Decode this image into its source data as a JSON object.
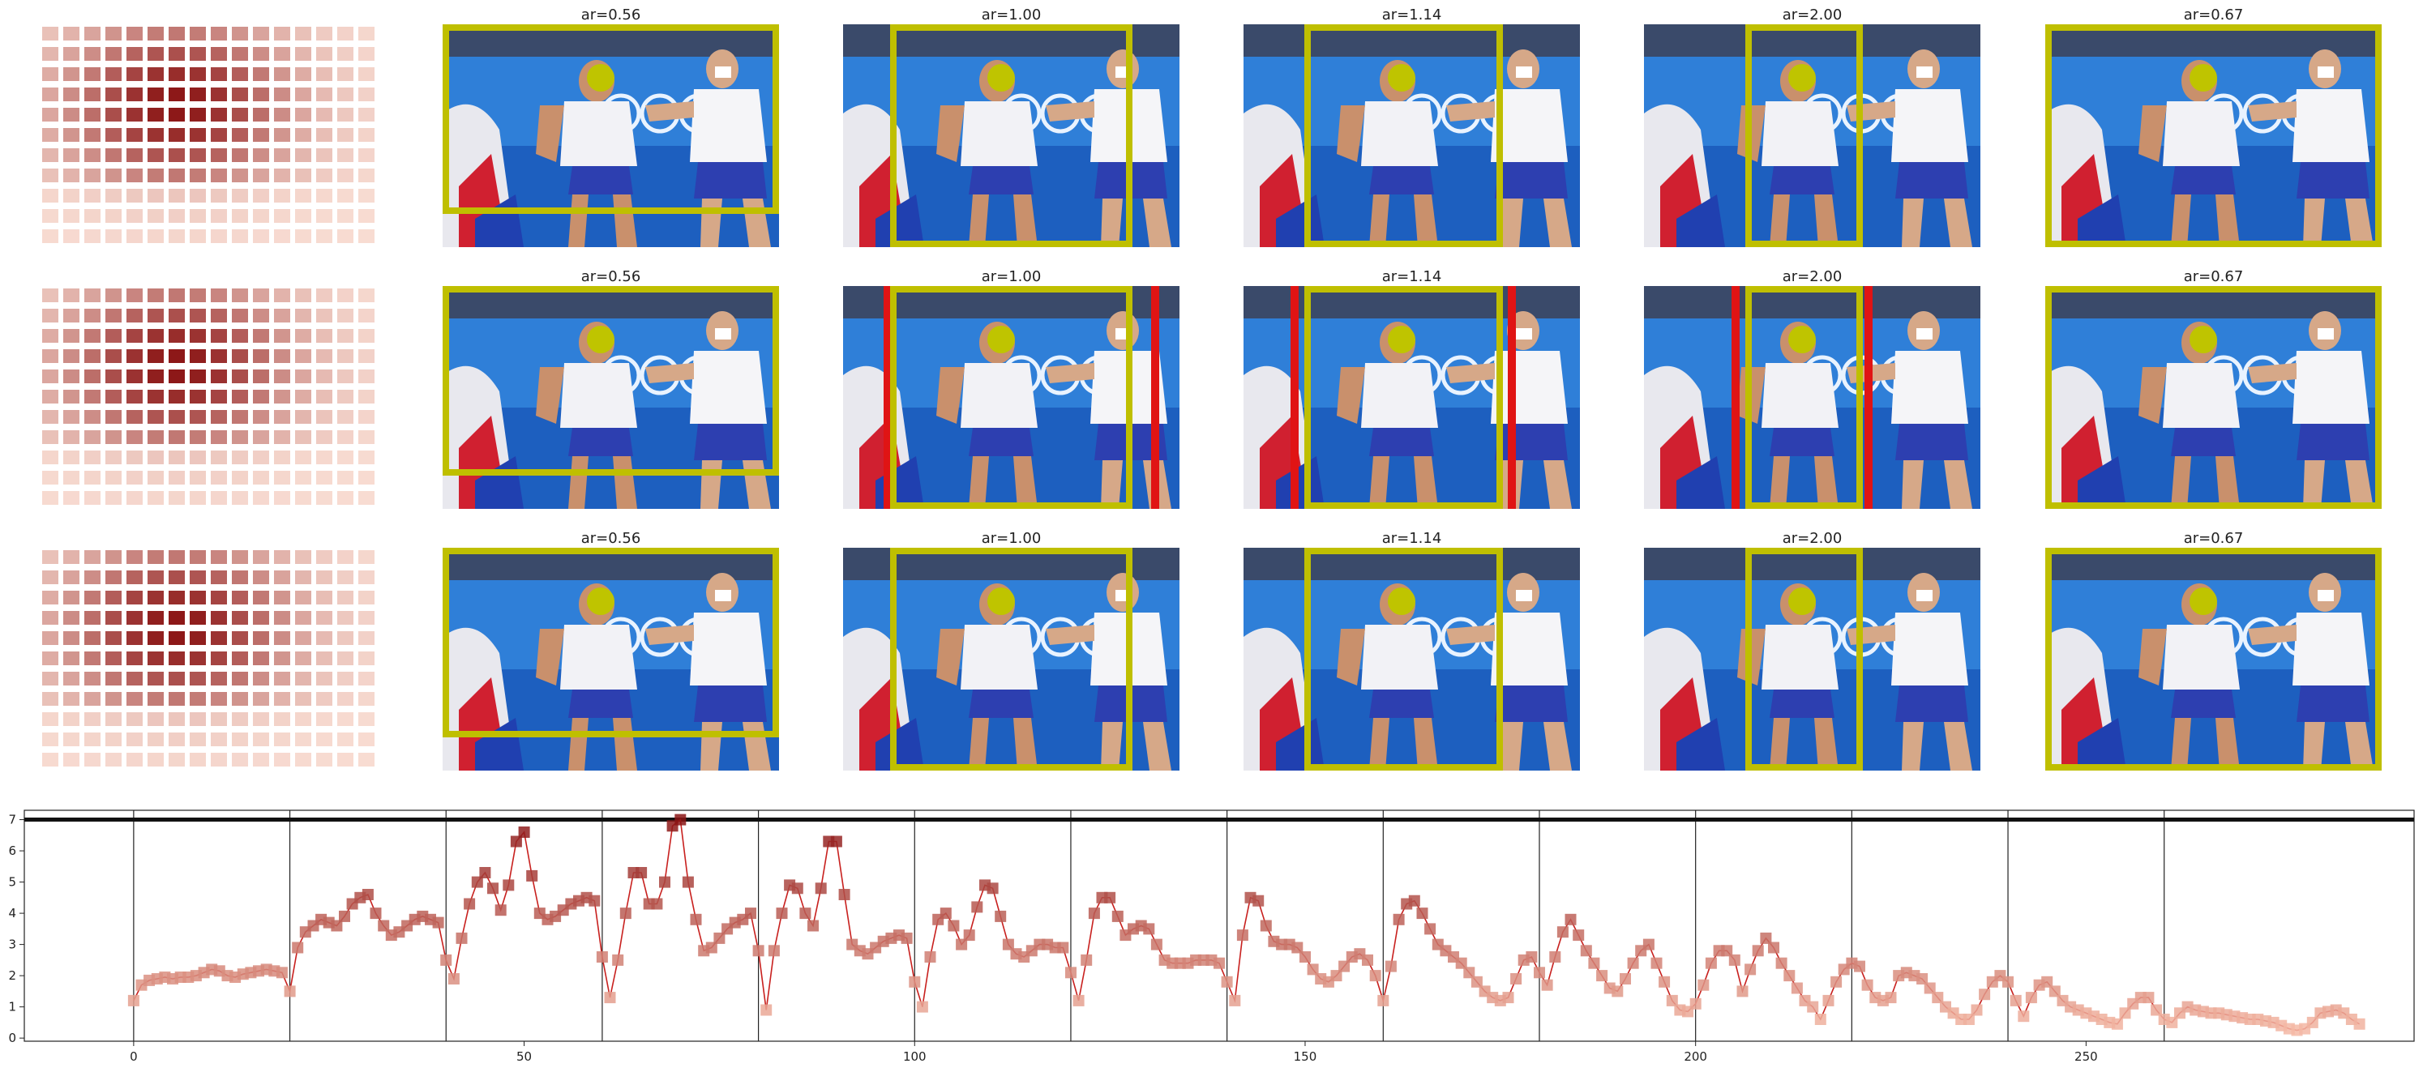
{
  "rows": [
    {
      "heatmap_icon": "saliency-heatmap",
      "crops": [
        {
          "title": "ar=0.56"
        },
        {
          "title": "ar=1.00"
        },
        {
          "title": "ar=1.14"
        },
        {
          "title": "ar=2.00"
        },
        {
          "title": "ar=0.67"
        }
      ]
    },
    {
      "heatmap_icon": "saliency-heatmap",
      "crops": [
        {
          "title": "ar=0.56"
        },
        {
          "title": "ar=1.00"
        },
        {
          "title": "ar=1.14"
        },
        {
          "title": "ar=2.00"
        },
        {
          "title": "ar=0.67"
        }
      ]
    },
    {
      "heatmap_icon": "saliency-heatmap",
      "crops": [
        {
          "title": "ar=0.56"
        },
        {
          "title": "ar=1.00"
        },
        {
          "title": "ar=1.14"
        },
        {
          "title": "ar=2.00"
        },
        {
          "title": "ar=0.67"
        }
      ]
    }
  ],
  "colors": {
    "crop_box": "#bfbf00",
    "alt_crop_box": "#e01414",
    "face_dot": "#bfc400",
    "series_line": "#c8201e",
    "heat_low": "#f8dcd2",
    "heat_high": "#8b1515"
  },
  "chart_data": {
    "type": "line",
    "marker": "square",
    "xlim": [
      -14,
      292
    ],
    "ylim": [
      -0.1,
      7.3
    ],
    "xticks": [
      0,
      50,
      100,
      150,
      200,
      250
    ],
    "yticks": [
      0,
      1,
      2,
      3,
      4,
      5,
      6,
      7
    ],
    "grid": "vertical lines every 20 frames",
    "vlines": [
      0,
      20,
      40,
      60,
      80,
      100,
      120,
      140,
      160,
      180,
      200,
      220,
      240,
      260
    ],
    "hline": 7,
    "x_start": 0,
    "values": [
      1.2,
      1.7,
      1.85,
      1.9,
      1.95,
      1.9,
      1.95,
      1.95,
      2.0,
      2.1,
      2.2,
      2.15,
      2.0,
      1.95,
      2.05,
      2.1,
      2.15,
      2.2,
      2.15,
      2.1,
      1.5,
      2.9,
      3.4,
      3.6,
      3.8,
      3.7,
      3.6,
      3.9,
      4.3,
      4.5,
      4.6,
      4.0,
      3.6,
      3.3,
      3.4,
      3.6,
      3.8,
      3.9,
      3.8,
      3.7,
      2.5,
      1.9,
      3.2,
      4.3,
      5.0,
      5.3,
      4.8,
      4.1,
      4.9,
      6.3,
      6.6,
      5.2,
      4.0,
      3.8,
      3.9,
      4.1,
      4.3,
      4.4,
      4.5,
      4.4,
      2.6,
      1.3,
      2.5,
      4.0,
      5.3,
      5.3,
      4.3,
      4.3,
      5.0,
      6.8,
      7.0,
      5.0,
      3.8,
      2.8,
      2.9,
      3.2,
      3.5,
      3.7,
      3.8,
      4.0,
      2.8,
      0.9,
      2.8,
      4.0,
      4.9,
      4.8,
      4.0,
      3.6,
      4.8,
      6.3,
      6.3,
      4.6,
      3.0,
      2.8,
      2.7,
      2.9,
      3.1,
      3.2,
      3.3,
      3.2,
      1.8,
      1.0,
      2.6,
      3.8,
      4.0,
      3.6,
      3.0,
      3.3,
      4.2,
      4.9,
      4.8,
      3.9,
      3.0,
      2.7,
      2.6,
      2.8,
      3.0,
      3.0,
      2.9,
      2.9,
      2.1,
      1.2,
      2.5,
      4.0,
      4.5,
      4.5,
      3.9,
      3.3,
      3.5,
      3.6,
      3.5,
      3.0,
      2.5,
      2.4,
      2.4,
      2.4,
      2.5,
      2.5,
      2.5,
      2.4,
      1.8,
      1.2,
      3.3,
      4.5,
      4.4,
      3.6,
      3.1,
      3.0,
      3.0,
      2.9,
      2.6,
      2.2,
      1.9,
      1.8,
      2.0,
      2.3,
      2.6,
      2.7,
      2.5,
      2.0,
      1.2,
      2.3,
      3.8,
      4.3,
      4.4,
      4.0,
      3.5,
      3.0,
      2.8,
      2.6,
      2.4,
      2.1,
      1.8,
      1.5,
      1.3,
      1.2,
      1.3,
      1.9,
      2.5,
      2.6,
      2.1,
      1.7,
      2.6,
      3.4,
      3.8,
      3.3,
      2.8,
      2.4,
      2.0,
      1.6,
      1.5,
      1.9,
      2.4,
      2.8,
      3.0,
      2.4,
      1.8,
      1.2,
      0.9,
      0.85,
      1.1,
      1.7,
      2.4,
      2.8,
      2.8,
      2.5,
      1.5,
      2.2,
      2.8,
      3.2,
      2.9,
      2.4,
      2.0,
      1.6,
      1.2,
      1.0,
      0.6,
      1.2,
      1.8,
      2.2,
      2.4,
      2.3,
      1.7,
      1.3,
      1.2,
      1.3,
      2.0,
      2.1,
      2.0,
      1.9,
      1.6,
      1.3,
      1.0,
      0.8,
      0.6,
      0.6,
      0.9,
      1.4,
      1.8,
      2.0,
      1.8,
      1.2,
      0.7,
      1.3,
      1.7,
      1.8,
      1.5,
      1.2,
      1.0,
      0.9,
      0.8,
      0.7,
      0.6,
      0.5,
      0.45,
      0.8,
      1.1,
      1.3,
      1.3,
      0.9,
      0.6,
      0.5,
      0.8,
      1.0,
      0.9,
      0.85,
      0.8,
      0.8,
      0.75,
      0.7,
      0.65,
      0.6,
      0.6,
      0.55,
      0.5,
      0.4,
      0.3,
      0.25,
      0.3,
      0.5,
      0.8,
      0.85,
      0.9,
      0.8,
      0.6,
      0.45
    ]
  }
}
